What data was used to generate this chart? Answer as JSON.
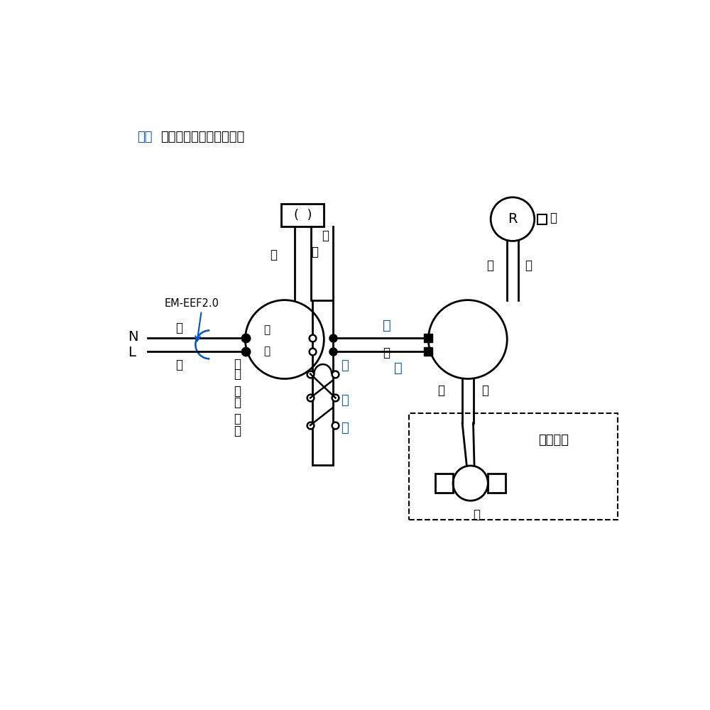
{
  "bg": "#ffffff",
  "black": "#000000",
  "blue": "#0055cc",
  "lw": 2.0,
  "ann_text_blue": "青字",
  "ann_text_black": "：入れ替わりしても良い",
  "em_label": "EM-EEF2.0",
  "shi": "シ",
  "ku": "ク",
  "i": "イ",
  "ro": "ロ",
  "ha": "ハ",
  "ko": "小",
  "a": "ア",
  "N": "N",
  "L": "L",
  "R": "R",
  "paren": "(　)",
  "sekou": "施工省略"
}
